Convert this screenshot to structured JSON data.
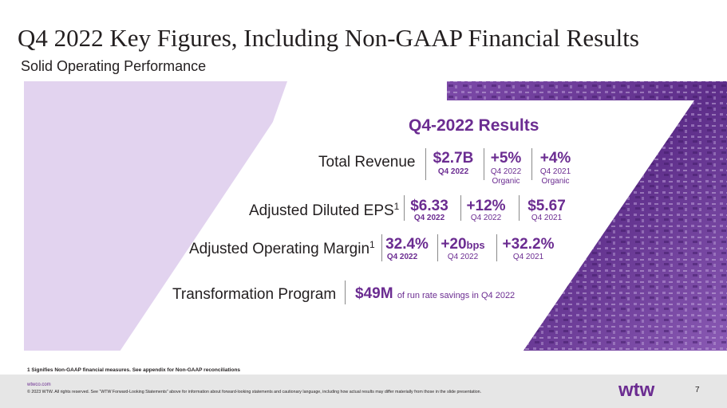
{
  "header": {
    "title": "Q4 2022 Key Figures, Including Non-GAAP Financial Results",
    "subtitle": "Solid Operating Performance"
  },
  "results": {
    "heading": "Q4-2022 Results",
    "total_revenue": {
      "label": "Total Revenue",
      "value": "$2.7B",
      "value_period": "Q4 2022",
      "growth": "+5%",
      "growth_line1": "Q4 2022",
      "growth_line2": "Organic",
      "prior": "+4%",
      "prior_line1": "Q4 2021",
      "prior_line2": "Organic"
    },
    "adjusted_eps": {
      "label": "Adjusted Diluted EPS",
      "footnote_mark": "1",
      "value": "$6.33",
      "value_period": "Q4 2022",
      "growth": "+12%",
      "growth_period": "Q4 2022",
      "prior": "$5.67",
      "prior_period": "Q4 2021"
    },
    "adjusted_margin": {
      "label": "Adjusted Operating Margin",
      "footnote_mark": "1",
      "value": "32.4%",
      "value_period": "Q4 2022",
      "growth": "+20",
      "growth_unit": "bps",
      "growth_period": "Q4 2022",
      "prior": "+32.2%",
      "prior_period": "Q4 2021"
    },
    "transformation": {
      "label": "Transformation Program",
      "value": "$49M",
      "description": "of run rate savings in Q4 2022"
    }
  },
  "footnote": "1 Signifies Non-GAAP financial measures. See appendix for Non-GAAP reconciliations",
  "footer": {
    "link": "wtwco.com",
    "copyright": "© 2023 WTW. All rights reserved. See “WTW Forward-Looking Statements” above for information about forward-looking statements and cautionary language, including how actual results may differ materially from those in the slide presentation.",
    "logo_text": "wtw",
    "page_number": "7"
  },
  "colors": {
    "accent": "#6b2c91",
    "band_light": "#e2d3ef",
    "photo_dark": "#5a2a86"
  }
}
